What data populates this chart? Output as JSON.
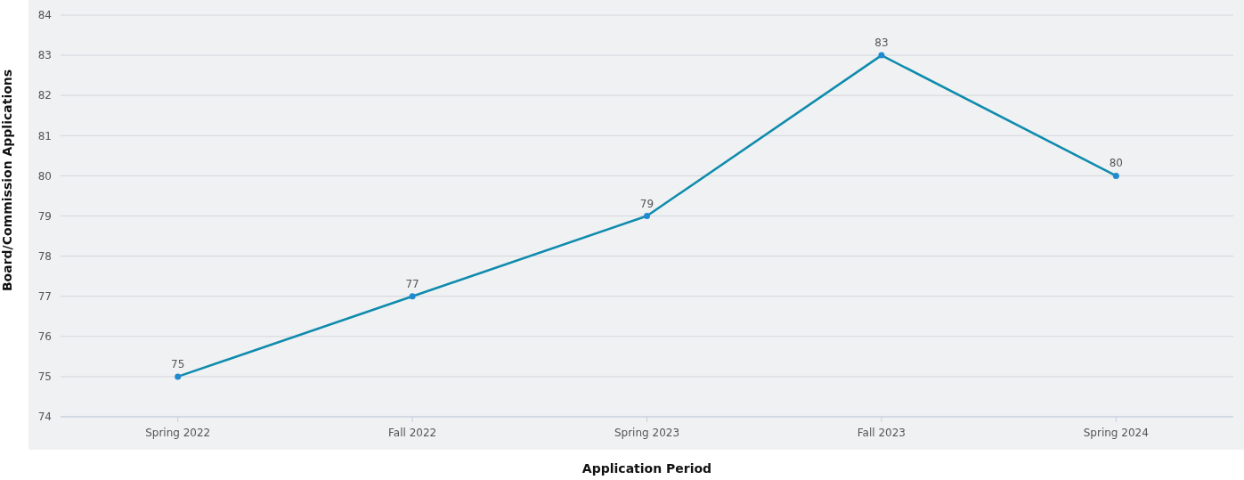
{
  "chart_data": {
    "type": "line",
    "xlabel": "Application Period",
    "ylabel": "Board/Commission Applications",
    "categories": [
      "Spring 2022",
      "Fall 2022",
      "Spring 2023",
      "Fall 2023",
      "Spring 2024"
    ],
    "series": [
      {
        "color": "#0e8bad",
        "values": [
          75,
          77,
          79,
          83,
          80
        ]
      }
    ],
    "ylim": [
      74,
      84
    ],
    "yticks": [
      74,
      75,
      76,
      77,
      78,
      79,
      80,
      81,
      82,
      83,
      84
    ],
    "grid": "y",
    "marker": "circle",
    "data_labels": true
  }
}
